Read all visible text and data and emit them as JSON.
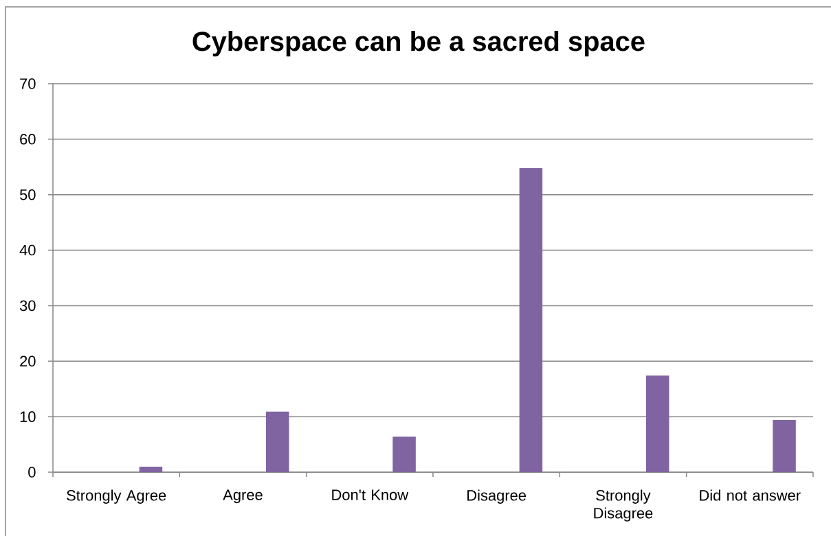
{
  "chart_data": {
    "type": "bar",
    "title": "Cyberspace can be a sacred space",
    "categories": [
      "Strongly Agree",
      "Agree",
      "Don't Know",
      "Disagree",
      "Strongly Disagree",
      "Did not answer"
    ],
    "values": [
      1.0,
      10.9,
      6.4,
      54.8,
      17.4,
      9.4
    ],
    "color": "#8064a2",
    "ylim": [
      0,
      70
    ],
    "yticks": [
      0,
      10,
      20,
      30,
      40,
      50,
      60,
      70
    ],
    "grid": "y"
  }
}
